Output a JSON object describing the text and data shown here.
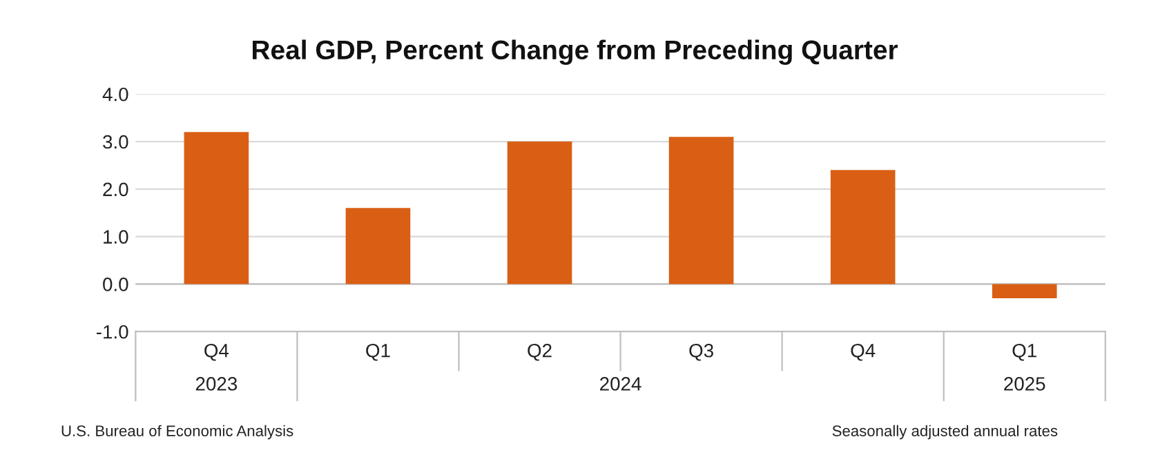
{
  "chart_data": {
    "type": "bar",
    "title": "Real GDP, Percent Change from Preceding Quarter",
    "categories": [
      "Q4",
      "Q1",
      "Q2",
      "Q3",
      "Q4",
      "Q1"
    ],
    "values": [
      3.2,
      1.6,
      3.0,
      3.1,
      2.4,
      -0.3
    ],
    "color": "#d95f14",
    "ylim": [
      -1.0,
      4.0
    ],
    "yticks": [
      {
        "value": -1.0,
        "label": "-1.0"
      },
      {
        "value": 0.0,
        "label": "0.0"
      },
      {
        "value": 1.0,
        "label": "1.0"
      },
      {
        "value": 2.0,
        "label": "2.0"
      },
      {
        "value": 3.0,
        "label": "3.0"
      },
      {
        "value": 4.0,
        "label": "4.0"
      }
    ],
    "grid": "y",
    "annotations": [
      "2023",
      "2024",
      "2025",
      "U.S. Bureau of Economic Analysis",
      "Seasonally adjusted annual rates"
    ]
  }
}
